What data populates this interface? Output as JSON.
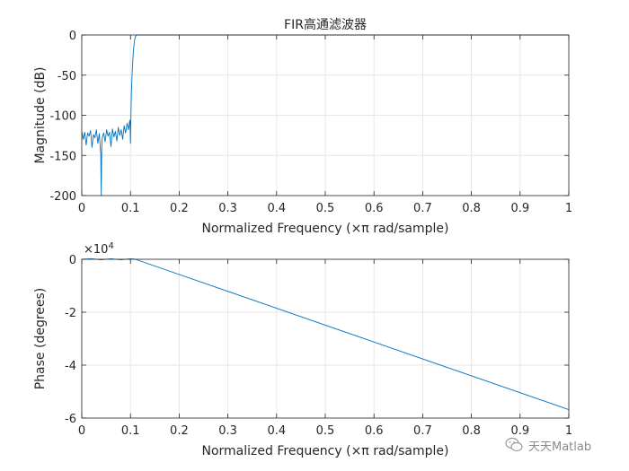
{
  "chart_data": [
    {
      "type": "line",
      "title": "FIR高通滤波器",
      "xlabel": "Normalized Frequency  (×π rad/sample)",
      "ylabel": "Magnitude (dB)",
      "xlim": [
        0,
        1
      ],
      "ylim": [
        -200,
        0
      ],
      "xticks": [
        0,
        0.1,
        0.2,
        0.3,
        0.4,
        0.5,
        0.6,
        0.7,
        0.8,
        0.9,
        1
      ],
      "yticks": [
        0,
        -50,
        -100,
        -150,
        -200
      ],
      "grid": true,
      "color": "#0072BD",
      "series": [
        {
          "x": [
            0,
            0.003,
            0.006,
            0.009,
            0.012,
            0.015,
            0.018,
            0.021,
            0.024,
            0.027,
            0.03,
            0.033,
            0.036,
            0.039,
            0.04,
            0.041,
            0.042,
            0.045,
            0.048,
            0.051,
            0.054,
            0.057,
            0.06,
            0.063,
            0.066,
            0.069,
            0.072,
            0.075,
            0.078,
            0.081,
            0.084,
            0.087,
            0.09,
            0.093,
            0.096,
            0.098,
            0.099,
            0.1,
            0.101,
            0.102,
            0.104,
            0.106,
            0.108,
            0.11,
            0.113,
            0.12,
            0.2,
            0.3,
            0.4,
            0.5,
            0.6,
            0.7,
            0.8,
            0.9,
            1.0
          ],
          "y": [
            -120,
            -130,
            -121,
            -137,
            -122,
            -126,
            -119,
            -140,
            -124,
            -128,
            -118,
            -135,
            -123,
            -148,
            -200,
            -140,
            -128,
            -122,
            -133,
            -118,
            -126,
            -121,
            -139,
            -117,
            -127,
            -120,
            -132,
            -115,
            -125,
            -118,
            -130,
            -113,
            -122,
            -110,
            -118,
            -108,
            -106,
            -135,
            -100,
            -70,
            -40,
            -20,
            -8,
            -2,
            0,
            0,
            0,
            0,
            0,
            0,
            0,
            0,
            0,
            0,
            0
          ]
        }
      ]
    },
    {
      "type": "line",
      "xlabel": "Normalized Frequency  (×π rad/sample)",
      "ylabel": "Phase (degrees)",
      "exponent_label": "×10",
      "exponent_power": "4",
      "xlim": [
        0,
        1
      ],
      "ylim": [
        -6,
        0
      ],
      "xticks": [
        0,
        0.1,
        0.2,
        0.3,
        0.4,
        0.5,
        0.6,
        0.7,
        0.8,
        0.9,
        1
      ],
      "yticks": [
        0,
        -2,
        -4,
        -6
      ],
      "grid": true,
      "color": "#0072BD",
      "series": [
        {
          "x": [
            0,
            0.02,
            0.04,
            0.06,
            0.08,
            0.1,
            0.11,
            1.0
          ],
          "y": [
            0,
            0.02,
            -0.02,
            0.02,
            -0.02,
            0.02,
            0,
            -5.68
          ]
        }
      ]
    }
  ],
  "watermark": {
    "text": "天天Matlab",
    "icon": "wechat-icon"
  }
}
